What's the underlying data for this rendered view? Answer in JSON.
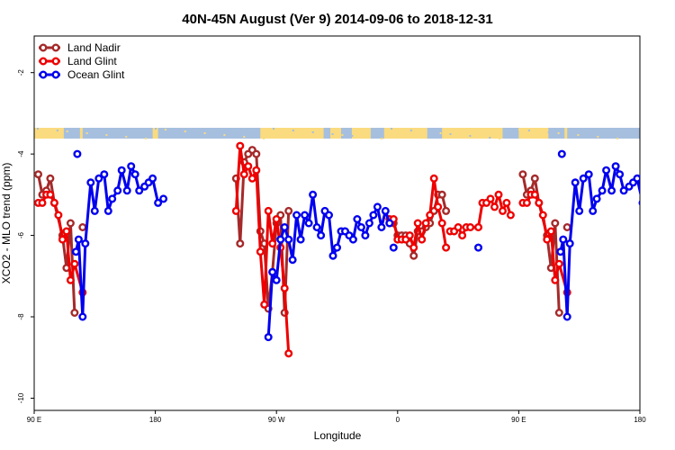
{
  "chart_data": {
    "type": "line",
    "title": "40N-45N August (Ver 9)   2014-09-06 to 2018-12-31",
    "xlabel": "Longitude",
    "ylabel": "XCO2 - MLO trend (ppm)",
    "xlim": [
      90,
      540
    ],
    "ylim": [
      -10.3,
      -1.1
    ],
    "x_ticks": [
      {
        "value": 90,
        "label": "90 E"
      },
      {
        "value": 180,
        "label": "180"
      },
      {
        "value": 270,
        "label": "90 W"
      },
      {
        "value": 360,
        "label": "0"
      },
      {
        "value": 450,
        "label": "90 E"
      },
      {
        "value": 540,
        "label": "180"
      }
    ],
    "y_ticks": [
      {
        "value": -2,
        "label": "-2"
      },
      {
        "value": -4,
        "label": "-4"
      },
      {
        "value": -6,
        "label": "-6"
      },
      {
        "value": -8,
        "label": "-8"
      },
      {
        "value": -10,
        "label": "-10"
      }
    ],
    "legend_position": "top-left",
    "land_ocean_strip": {
      "colors": {
        "land": "#fadb7f",
        "ocean": "#a6bfdf"
      }
    },
    "series": [
      {
        "name": "Land Nadir",
        "color": "#a52a2a",
        "segments": [
          [
            [
              93,
              -4.5
            ],
            [
              96,
              -5.0
            ],
            [
              99,
              -4.9
            ],
            [
              102,
              -4.6
            ],
            [
              105,
              -5.2
            ],
            [
              111,
              -6.0
            ],
            [
              114,
              -6.8
            ],
            [
              117,
              -5.7
            ],
            [
              120,
              -7.9
            ]
          ],
          [
            [
              126,
              -5.8
            ]
          ],
          [
            [
              240,
              -4.6
            ],
            [
              243,
              -6.2
            ],
            [
              246,
              -4.2
            ],
            [
              249,
              -4.0
            ],
            [
              252,
              -3.9
            ],
            [
              255,
              -4.0
            ],
            [
              258,
              -5.9
            ],
            [
              261,
              -6.2
            ],
            [
              264,
              -7.8
            ],
            [
              267,
              -6.9
            ],
            [
              270,
              -5.7
            ],
            [
              273,
              -5.5
            ],
            [
              276,
              -7.9
            ],
            [
              279,
              -5.4
            ]
          ],
          [
            [
              354,
              -5.7
            ],
            [
              357,
              -5.7
            ],
            [
              360,
              -6.0
            ],
            [
              363,
              -6.0
            ],
            [
              366,
              -6.0
            ],
            [
              369,
              -6.2
            ],
            [
              372,
              -6.5
            ],
            [
              375,
              -5.9
            ],
            [
              378,
              -5.9
            ],
            [
              381,
              -5.8
            ],
            [
              384,
              -5.7
            ],
            [
              387,
              -5.4
            ],
            [
              390,
              -5.0
            ],
            [
              393,
              -5.0
            ],
            [
              396,
              -5.4
            ]
          ],
          [
            [
              453,
              -4.5
            ],
            [
              456,
              -5.0
            ],
            [
              459,
              -4.9
            ],
            [
              462,
              -4.6
            ],
            [
              465,
              -5.2
            ],
            [
              471,
              -6.0
            ],
            [
              474,
              -6.8
            ],
            [
              477,
              -5.7
            ],
            [
              480,
              -7.9
            ]
          ],
          [
            [
              486,
              -5.8
            ]
          ]
        ]
      },
      {
        "name": "Land Glint",
        "color": "#ee0000",
        "segments": [
          [
            [
              93,
              -5.2
            ],
            [
              96,
              -5.2
            ],
            [
              99,
              -5.0
            ],
            [
              102,
              -5.0
            ],
            [
              105,
              -5.2
            ],
            [
              108,
              -5.5
            ],
            [
              111,
              -6.1
            ],
            [
              114,
              -5.9
            ],
            [
              117,
              -7.1
            ],
            [
              120,
              -6.7
            ],
            [
              126,
              -7.4
            ]
          ],
          [
            [
              240,
              -5.4
            ],
            [
              243,
              -3.8
            ],
            [
              246,
              -4.5
            ],
            [
              249,
              -4.3
            ],
            [
              252,
              -4.6
            ],
            [
              255,
              -4.4
            ],
            [
              258,
              -6.4
            ],
            [
              261,
              -7.7
            ],
            [
              264,
              -5.4
            ],
            [
              267,
              -6.2
            ],
            [
              270,
              -5.6
            ],
            [
              273,
              -6.3
            ],
            [
              276,
              -7.3
            ],
            [
              279,
              -8.9
            ]
          ],
          [
            [
              354,
              -5.6
            ],
            [
              357,
              -5.6
            ],
            [
              360,
              -6.1
            ],
            [
              363,
              -6.1
            ],
            [
              366,
              -6.1
            ],
            [
              369,
              -6.0
            ],
            [
              372,
              -6.3
            ],
            [
              375,
              -5.7
            ],
            [
              378,
              -6.1
            ],
            [
              381,
              -5.7
            ],
            [
              384,
              -5.5
            ],
            [
              387,
              -4.6
            ],
            [
              390,
              -5.3
            ],
            [
              393,
              -5.7
            ],
            [
              396,
              -6.3
            ]
          ],
          [
            [
              399,
              -5.9
            ],
            [
              402,
              -5.9
            ],
            [
              405,
              -5.8
            ],
            [
              408,
              -6.0
            ],
            [
              411,
              -5.8
            ],
            [
              414,
              -5.8
            ],
            [
              420,
              -5.8
            ],
            [
              423,
              -5.2
            ],
            [
              426,
              -5.2
            ],
            [
              429,
              -5.1
            ],
            [
              432,
              -5.3
            ],
            [
              435,
              -5.0
            ],
            [
              438,
              -5.4
            ],
            [
              441,
              -5.2
            ],
            [
              444,
              -5.5
            ]
          ],
          [
            [
              453,
              -5.2
            ],
            [
              456,
              -5.2
            ],
            [
              459,
              -5.0
            ],
            [
              462,
              -5.0
            ],
            [
              465,
              -5.2
            ],
            [
              468,
              -5.5
            ],
            [
              471,
              -6.1
            ],
            [
              474,
              -5.9
            ],
            [
              477,
              -7.1
            ],
            [
              480,
              -6.7
            ],
            [
              486,
              -7.4
            ]
          ]
        ]
      },
      {
        "name": "Ocean Glint",
        "color": "#0000ee",
        "segments": [
          [
            [
              121,
              -6.4
            ],
            [
              123,
              -6.1
            ],
            [
              126,
              -8.0
            ],
            [
              128,
              -6.2
            ],
            [
              132,
              -4.7
            ],
            [
              135,
              -5.4
            ],
            [
              138,
              -4.6
            ],
            [
              142,
              -4.5
            ],
            [
              145,
              -5.4
            ],
            [
              148,
              -5.1
            ],
            [
              152,
              -4.9
            ],
            [
              155,
              -4.4
            ],
            [
              159,
              -4.9
            ],
            [
              162,
              -4.3
            ],
            [
              165,
              -4.5
            ],
            [
              168,
              -4.9
            ],
            [
              172,
              -4.8
            ],
            [
              175,
              -4.7
            ],
            [
              178,
              -4.6
            ],
            [
              182,
              -5.2
            ],
            [
              186,
              -5.1
            ]
          ],
          [
            [
              264,
              -8.5
            ],
            [
              267,
              -6.9
            ],
            [
              270,
              -7.1
            ],
            [
              273,
              -6.1
            ],
            [
              276,
              -5.8
            ],
            [
              279,
              -6.1
            ],
            [
              282,
              -6.6
            ],
            [
              285,
              -5.5
            ],
            [
              288,
              -6.1
            ],
            [
              291,
              -5.5
            ],
            [
              294,
              -5.7
            ],
            [
              297,
              -5.0
            ],
            [
              300,
              -5.8
            ],
            [
              303,
              -6.0
            ],
            [
              306,
              -5.4
            ],
            [
              309,
              -5.5
            ],
            [
              312,
              -6.5
            ],
            [
              315,
              -6.3
            ],
            [
              318,
              -5.9
            ],
            [
              321,
              -5.9
            ],
            [
              324,
              -6.0
            ],
            [
              327,
              -6.1
            ],
            [
              330,
              -5.6
            ],
            [
              333,
              -5.8
            ],
            [
              336,
              -6.0
            ],
            [
              339,
              -5.7
            ],
            [
              342,
              -5.5
            ],
            [
              345,
              -5.3
            ],
            [
              348,
              -5.8
            ],
            [
              351,
              -5.4
            ],
            [
              354,
              -5.7
            ]
          ],
          [
            [
              481,
              -6.4
            ],
            [
              483,
              -6.1
            ],
            [
              486,
              -8.0
            ],
            [
              488,
              -6.2
            ],
            [
              492,
              -4.7
            ],
            [
              495,
              -5.4
            ],
            [
              498,
              -4.6
            ],
            [
              502,
              -4.5
            ],
            [
              505,
              -5.4
            ],
            [
              508,
              -5.1
            ],
            [
              512,
              -4.9
            ],
            [
              515,
              -4.4
            ],
            [
              519,
              -4.9
            ],
            [
              522,
              -4.3
            ],
            [
              525,
              -4.5
            ],
            [
              528,
              -4.9
            ],
            [
              532,
              -4.8
            ],
            [
              535,
              -4.7
            ],
            [
              538,
              -4.6
            ],
            [
              542,
              -5.2
            ],
            [
              546,
              -5.1
            ]
          ],
          [
            [
              122,
              -4.0
            ]
          ],
          [
            [
              482,
              -4.0
            ]
          ],
          [
            [
              357,
              -6.3
            ]
          ],
          [
            [
              420,
              -6.3
            ]
          ]
        ]
      }
    ]
  }
}
